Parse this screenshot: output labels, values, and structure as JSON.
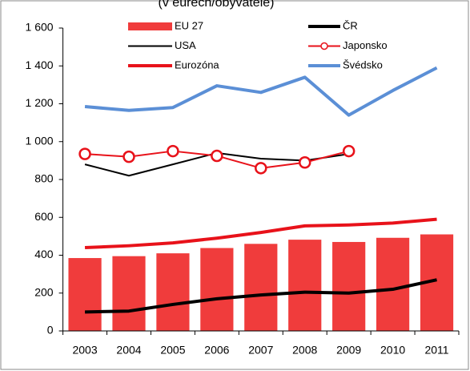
{
  "chart_data": {
    "type": "bar",
    "title": "(v eurech/obyvatele)",
    "categories": [
      "2003",
      "2004",
      "2005",
      "2006",
      "2007",
      "2008",
      "2009",
      "2010",
      "2011"
    ],
    "ylim": [
      0,
      1600
    ],
    "yticks": [
      0,
      200,
      400,
      600,
      800,
      {
        "value": 1000,
        "label": "1 000"
      },
      {
        "value": 1200,
        "label": "1 200"
      },
      {
        "value": 1400,
        "label": "1 400"
      },
      {
        "value": 1600,
        "label": "1 600"
      }
    ],
    "grid": false,
    "series": [
      {
        "name": "EU 27",
        "type": "bar",
        "color": "#f03c3c",
        "values": [
          385,
          395,
          410,
          438,
          460,
          482,
          470,
          492,
          510
        ]
      },
      {
        "name": "ČR",
        "type": "line",
        "color": "#000000",
        "width": 4,
        "values": [
          100,
          105,
          140,
          170,
          190,
          205,
          200,
          220,
          270
        ]
      },
      {
        "name": "USA",
        "type": "line",
        "color": "#000000",
        "width": 2,
        "values": [
          880,
          820,
          880,
          940,
          910,
          900,
          935,
          null,
          null
        ]
      },
      {
        "name": "Japonsko",
        "type": "line",
        "color": "#e8121a",
        "width": 2,
        "marker": "circle",
        "values": [
          935,
          920,
          950,
          925,
          860,
          890,
          950,
          null,
          null
        ]
      },
      {
        "name": "Eurozóna",
        "type": "line",
        "color": "#e8121a",
        "width": 4,
        "values": [
          440,
          450,
          465,
          490,
          520,
          555,
          560,
          570,
          590
        ]
      },
      {
        "name": "Švédsko",
        "type": "line",
        "color": "#5b8fd6",
        "width": 4,
        "values": [
          1185,
          1165,
          1180,
          1295,
          1260,
          1340,
          1140,
          1270,
          1390
        ]
      }
    ]
  }
}
